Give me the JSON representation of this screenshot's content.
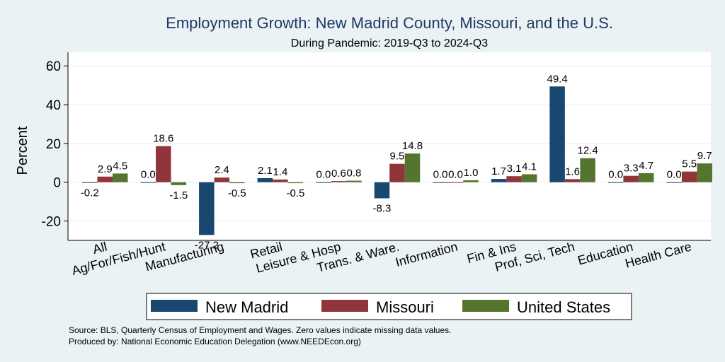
{
  "chart_data": {
    "type": "bar",
    "title": "Employment Growth: New Madrid County, Missouri, and the U.S.",
    "subtitle": "During Pandemic: 2019-Q3 to 2024-Q3",
    "ylabel": "Percent",
    "xlabel": "",
    "ylim": [
      -30,
      67
    ],
    "yticks": [
      -20,
      0,
      20,
      40,
      60
    ],
    "ytick_labels": [
      "-20",
      "0",
      "20",
      "40",
      "60"
    ],
    "grid": true,
    "legend_position": "bottom",
    "categories": [
      "All",
      "Ag/For/Fish/Hunt",
      "Manufacturing",
      "Retail",
      "Leisure & Hosp",
      "Trans. & Ware.",
      "Information",
      "Fin & Ins",
      "Prof, Sci, Tech",
      "Education",
      "Health Care"
    ],
    "series": [
      {
        "name": "New Madrid",
        "color": "#1a476f",
        "values": [
          -0.2,
          0.0,
          -27.2,
          2.1,
          0.0,
          -8.3,
          0.0,
          1.7,
          49.4,
          0.0,
          0.0
        ],
        "labels": [
          "-0.2",
          "0.0",
          "-27.2",
          "2.1",
          "0.0",
          "-8.3",
          "0.0",
          "1.7",
          "49.4",
          "0.0",
          "0.0"
        ]
      },
      {
        "name": "Missouri",
        "color": "#90353b",
        "values": [
          2.9,
          18.6,
          2.4,
          1.4,
          0.6,
          9.5,
          -0.0,
          3.1,
          1.6,
          3.3,
          5.5
        ],
        "labels": [
          "2.9",
          "18.6",
          "2.4",
          "1.4",
          "0.6",
          "9.5",
          "0.0",
          "3.1",
          "1.6",
          "3.3",
          "5.5"
        ]
      },
      {
        "name": "United States",
        "color": "#55752f",
        "values": [
          4.5,
          -1.5,
          -0.5,
          -0.5,
          0.8,
          14.8,
          1.0,
          4.1,
          12.4,
          4.7,
          9.7
        ],
        "labels": [
          "4.5",
          "-1.5",
          "-0.5",
          "-0.5",
          "0.8",
          "14.8",
          "1.0",
          "4.1",
          "12.4",
          "4.7",
          "9.7"
        ]
      }
    ],
    "notes": [
      "Source: BLS, Quarterly Census of Employment and Wages. Zero values indicate missing data values.",
      "Produced by: National Economic Education Delegation (www.NEEDEcon.org)"
    ]
  }
}
